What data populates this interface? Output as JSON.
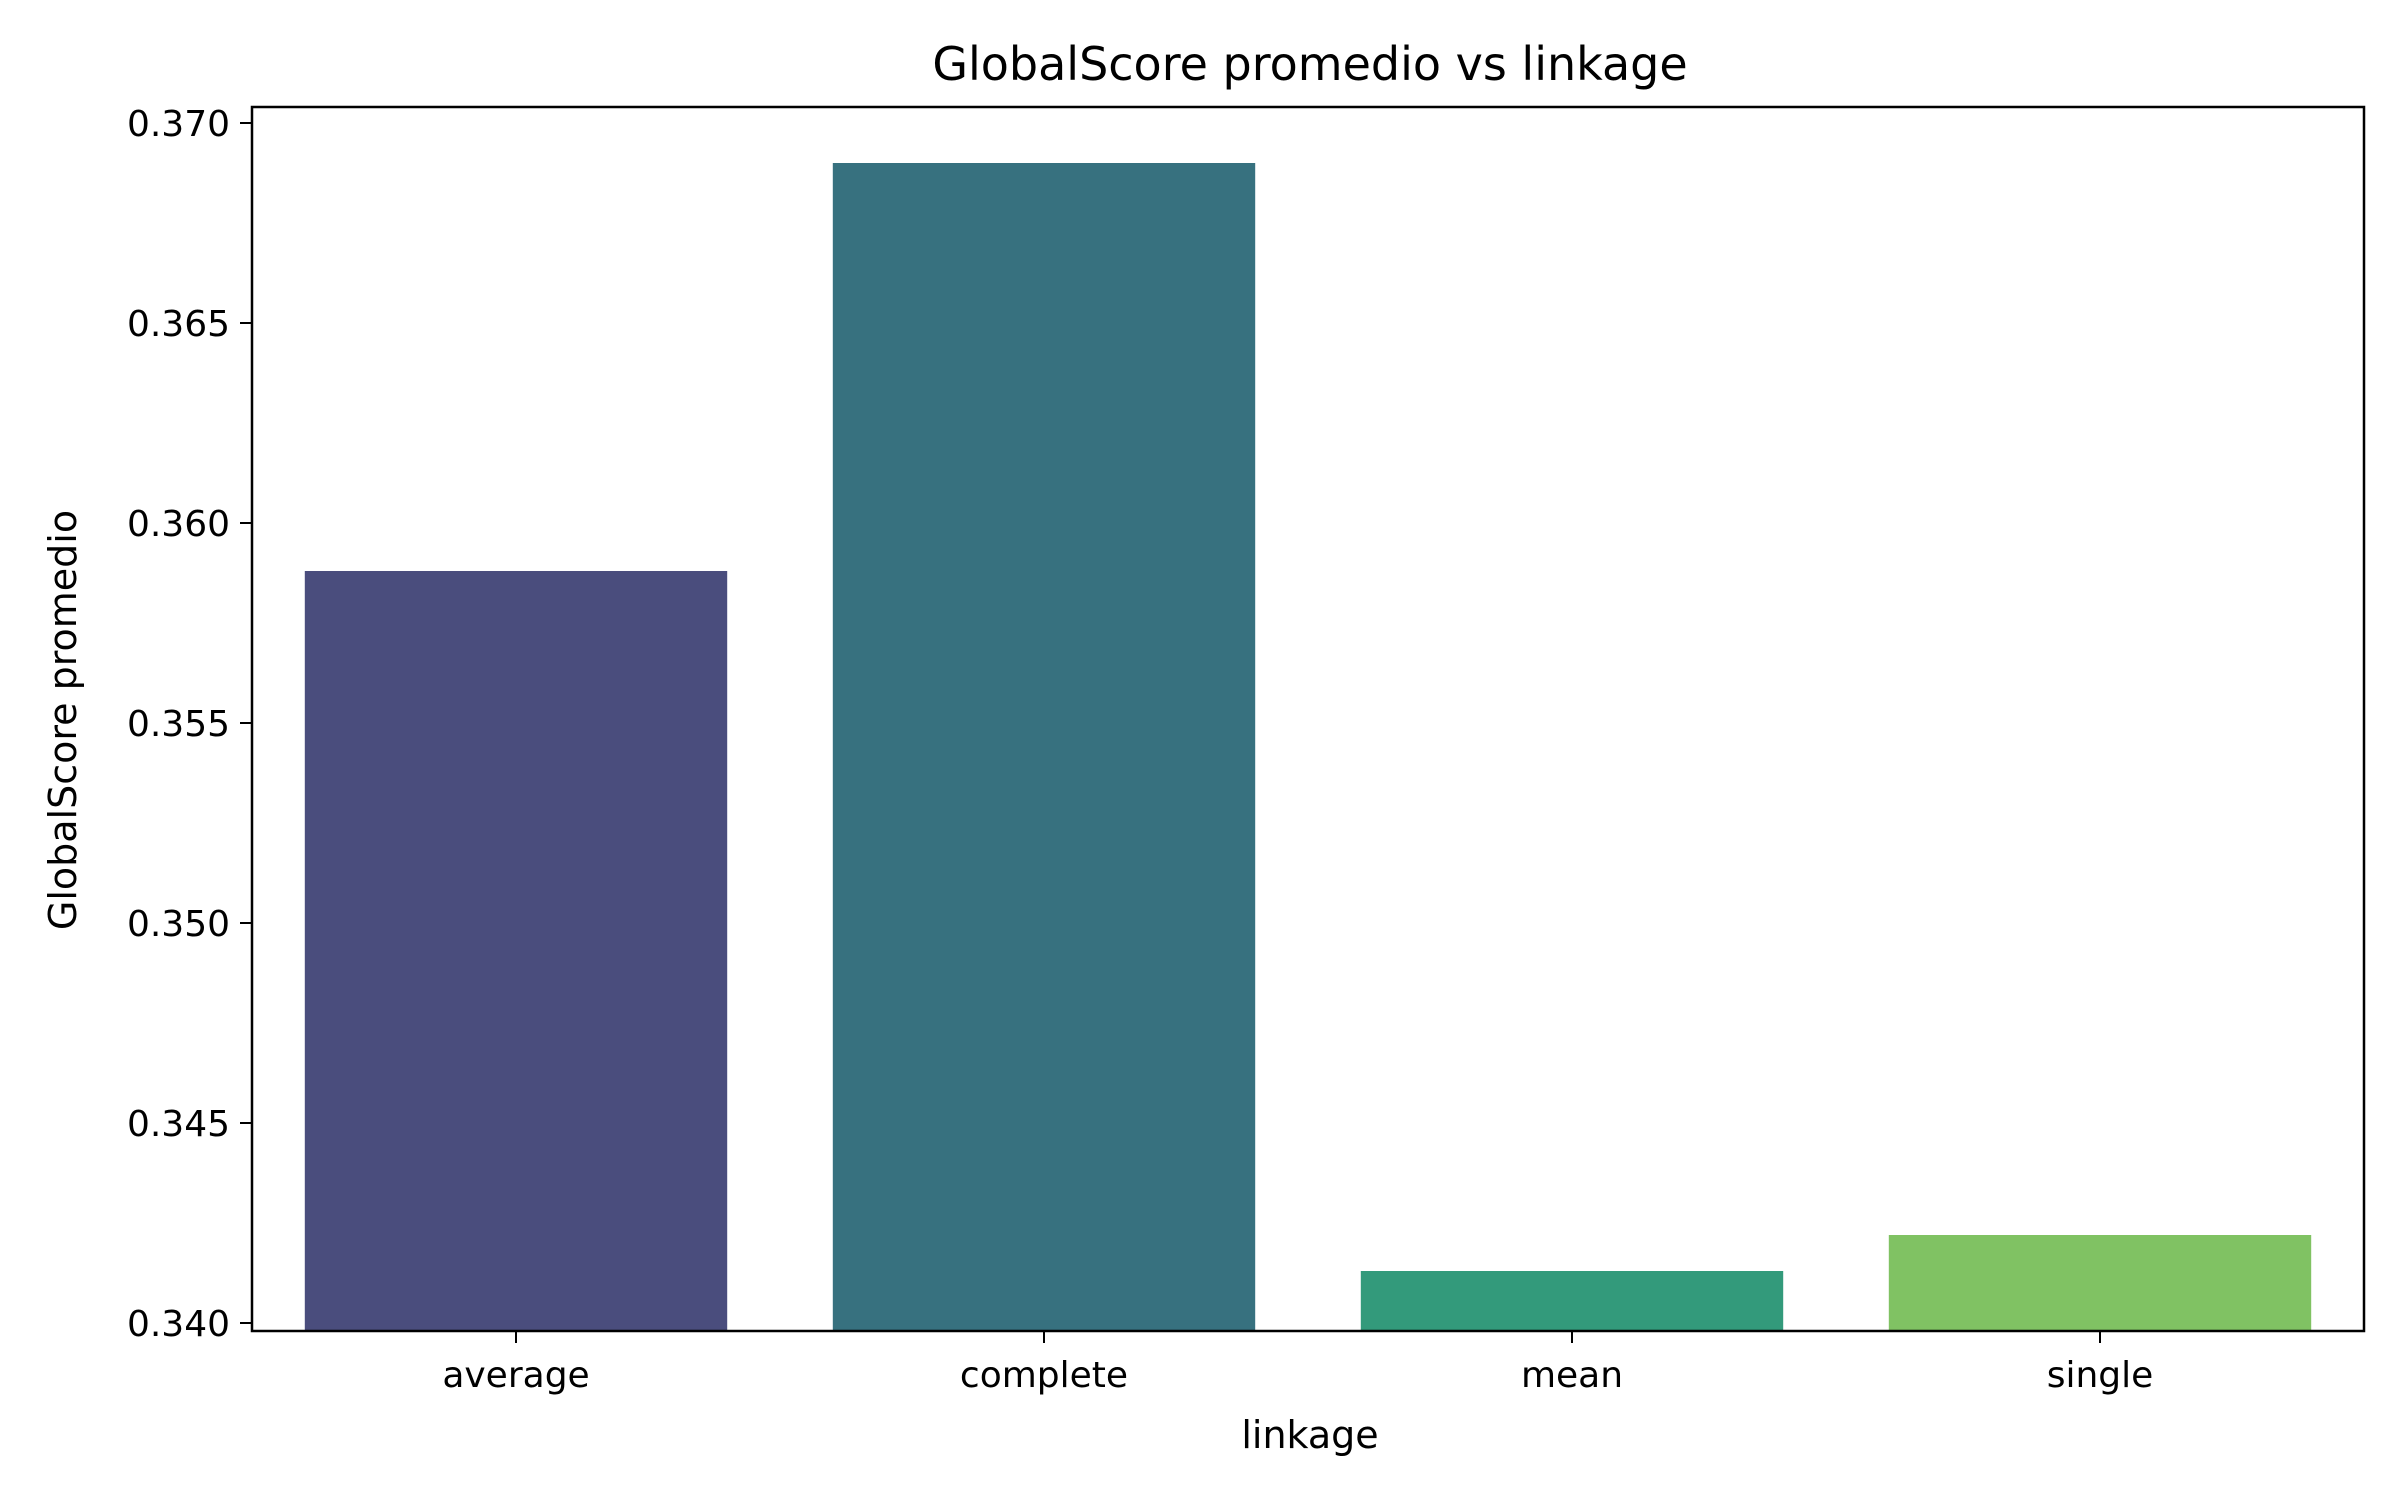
{
  "chart_data": {
    "type": "bar",
    "title": "GlobalScore promedio vs linkage",
    "xlabel": "linkage",
    "ylabel": "GlobalScore promedio",
    "categories": [
      "average",
      "complete",
      "mean",
      "single"
    ],
    "values": [
      0.3588,
      0.369,
      0.3413,
      0.3422
    ],
    "colors": [
      "#4a4d7d",
      "#37717f",
      "#339a7b",
      "#80c263"
    ],
    "ylim": [
      0.3398,
      0.3704
    ],
    "yticks": [
      0.34,
      0.345,
      0.35,
      0.355,
      0.36,
      0.365,
      0.37
    ],
    "ytick_labels": [
      "0.340",
      "0.345",
      "0.350",
      "0.355",
      "0.360",
      "0.365",
      "0.370"
    ],
    "grid": false,
    "legend": "none"
  }
}
